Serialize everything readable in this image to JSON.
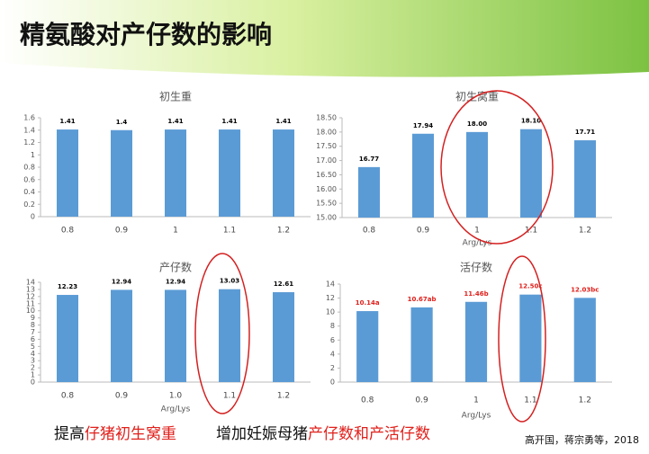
{
  "title": "精氨酸对产仔数的影响",
  "chart_data": [
    {
      "type": "bar",
      "title": "初生重",
      "categories": [
        "0.8",
        "0.9",
        "1",
        "1.1",
        "1.2"
      ],
      "values": [
        1.41,
        1.4,
        1.41,
        1.41,
        1.41
      ],
      "color": "#5b9bd5",
      "label_color": "#000000",
      "ylim": [
        0,
        1.6
      ],
      "yticks": [
        0,
        0.2,
        0.4,
        0.6,
        0.8,
        1,
        1.2,
        1.4,
        1.6
      ],
      "grid": false
    },
    {
      "type": "bar",
      "title": "初生窝重",
      "xlabel": "Arg/Lys",
      "categories": [
        "0.8",
        "0.9",
        "1",
        "1.1",
        "1.2"
      ],
      "values": [
        16.77,
        17.94,
        18.0,
        18.1,
        17.71
      ],
      "value_labels": [
        "16.77",
        "17.94",
        "18.00",
        "18.10",
        "17.71"
      ],
      "color": "#5b9bd5",
      "label_color": "#000000",
      "ylim": [
        15,
        18.5
      ],
      "yticks": [
        {
          "value": 15,
          "label": "15.00"
        },
        {
          "value": 15.5,
          "label": "15.50"
        },
        {
          "value": 16,
          "label": "16.00"
        },
        {
          "value": 16.5,
          "label": "16.50"
        },
        {
          "value": 17,
          "label": "17.00"
        },
        {
          "value": 17.5,
          "label": "17.50"
        },
        {
          "value": 18,
          "label": "18.00"
        },
        {
          "value": 18.5,
          "label": "18.50"
        }
      ],
      "grid": false
    },
    {
      "type": "bar",
      "title": "产仔数",
      "xlabel": "Arg/Lys",
      "categories": [
        "0.8",
        "0.9",
        "1.0",
        "1.1",
        "1.2"
      ],
      "values": [
        12.23,
        12.94,
        12.94,
        13.03,
        12.61
      ],
      "color": "#5b9bd5",
      "label_color": "#000000",
      "ylim": [
        0,
        14
      ],
      "yticks": [
        0,
        1,
        2,
        3,
        4,
        5,
        6,
        7,
        8,
        9,
        10,
        11,
        12,
        13,
        14
      ],
      "grid": false
    },
    {
      "type": "bar",
      "title": "活仔数",
      "xlabel": "Arg/Lys",
      "categories": [
        "0.8",
        "0.9",
        "1",
        "1.1",
        "1.2"
      ],
      "values": [
        10.14,
        10.67,
        11.46,
        12.5,
        12.03
      ],
      "value_labels": [
        "10.14a",
        "10.67ab",
        "11.46b",
        "12.50c",
        "12.03bc"
      ],
      "color": "#5b9bd5",
      "label_color": "#e0201b",
      "ylim": [
        0,
        14
      ],
      "yticks": [
        0,
        2,
        4,
        6,
        8,
        10,
        12,
        14
      ],
      "grid": false
    }
  ],
  "footer": {
    "left": [
      "提高",
      "仔猪初生窝重"
    ],
    "right": [
      "增加妊娠母猪",
      "产仔数和产活仔数"
    ]
  },
  "citation": "高开国，蒋宗勇等，2018"
}
